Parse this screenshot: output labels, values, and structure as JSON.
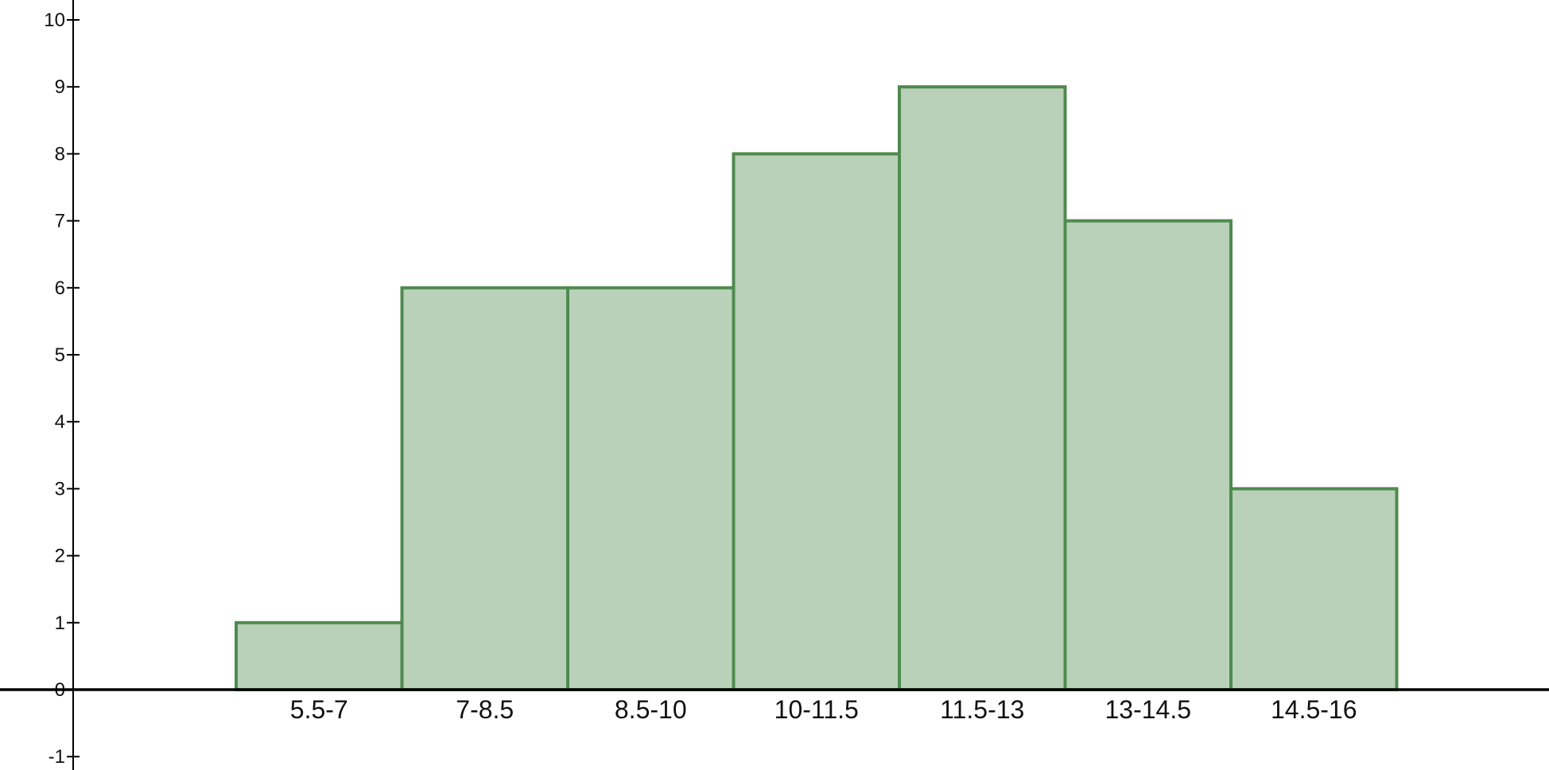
{
  "chart_data": {
    "type": "bar",
    "title": "",
    "xlabel": "",
    "ylabel": "",
    "categories": [
      "5.5-7",
      "7-8.5",
      "8.5-10",
      "10-11.5",
      "11.5-13",
      "13-14.5",
      "14.5-16"
    ],
    "values": [
      1,
      6,
      6,
      8,
      9,
      7,
      3
    ],
    "ylim": [
      -1,
      10
    ],
    "yticks": [
      -1,
      0,
      1,
      2,
      3,
      4,
      5,
      6,
      7,
      8,
      9,
      10
    ],
    "grid": false,
    "legend": "none",
    "colors": {
      "bar_fill": "#b8d1b8",
      "bar_stroke": "#4f8a4f",
      "axis": "#000000",
      "text": "#111111"
    }
  }
}
